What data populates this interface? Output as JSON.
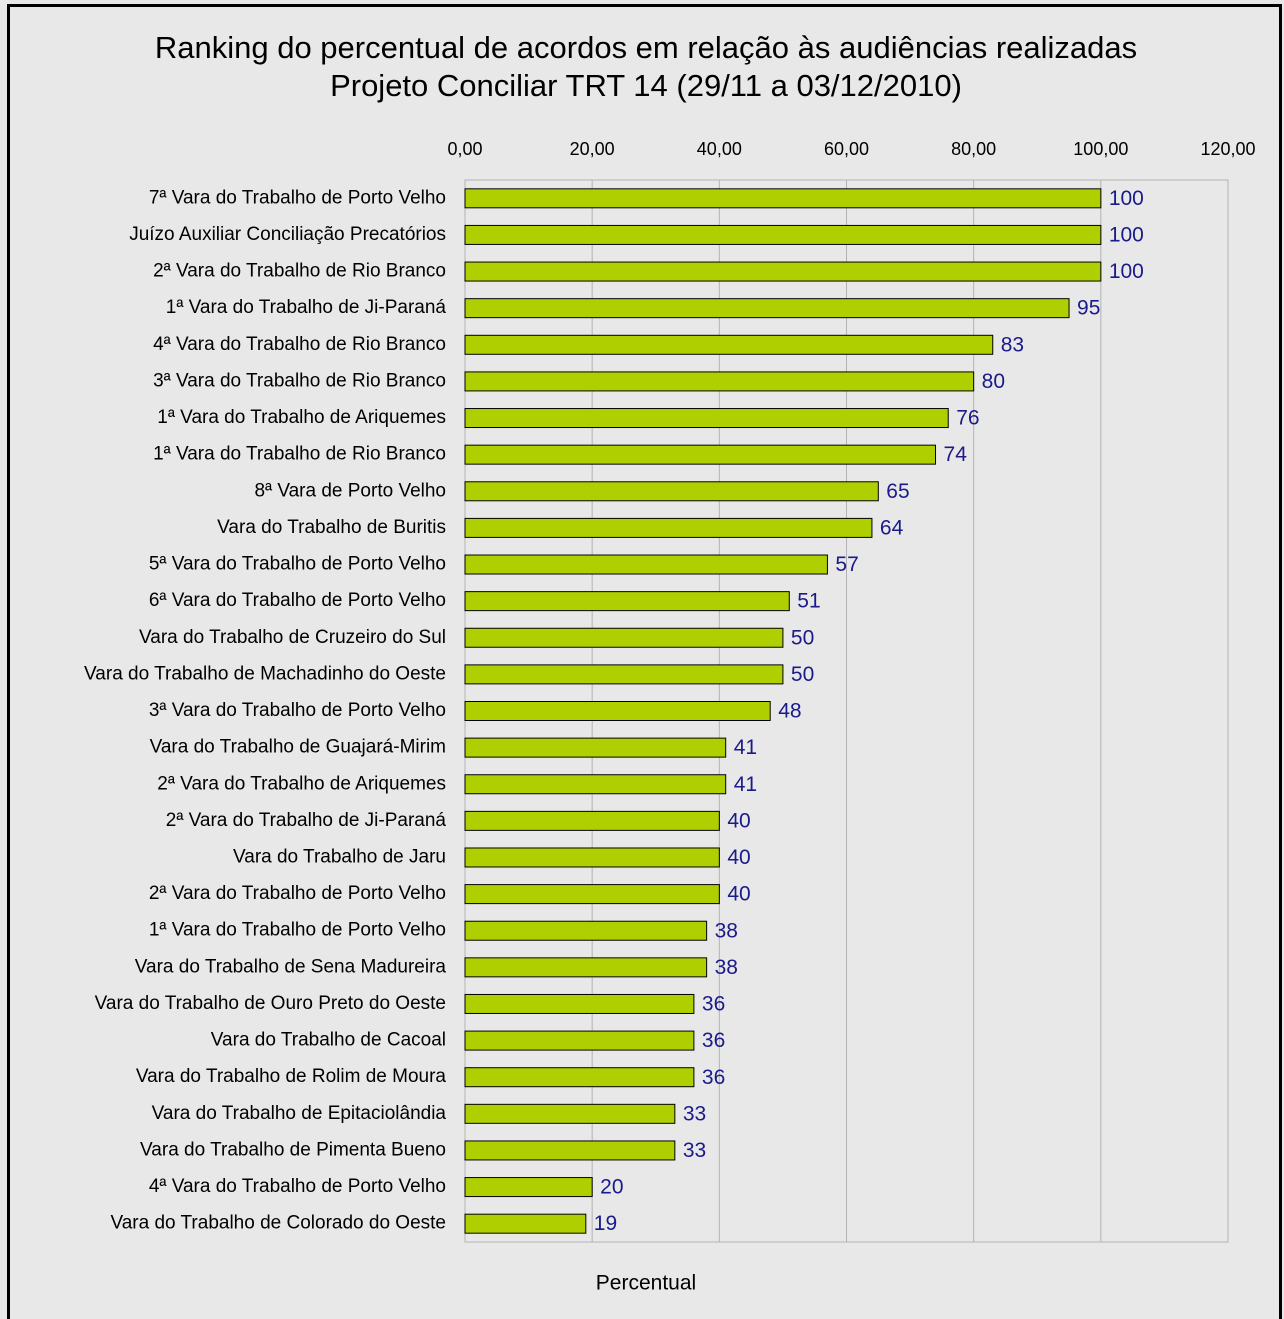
{
  "chart_data": {
    "type": "barh",
    "title": [
      "Ranking do percentual de acordos em relação às audiências realizadas",
      "Projeto Conciliar TRT 14  (29/11 a 03/12/2010)"
    ],
    "xlabel": "Percentual",
    "categories": [
      "7ª Vara do Trabalho de Porto Velho",
      "Juízo Auxiliar Conciliação Precatórios",
      "2ª Vara do Trabalho de Rio Branco",
      "1ª Vara do Trabalho de Ji-Paraná",
      "4ª Vara do Trabalho de Rio Branco",
      "3ª Vara do Trabalho de Rio Branco",
      "1ª Vara do Trabalho de Ariquemes",
      "1ª Vara do Trabalho de Rio Branco",
      "8ª Vara de Porto Velho",
      "Vara do Trabalho de Buritis",
      "5ª Vara do Trabalho de Porto Velho",
      "6ª Vara do Trabalho de Porto Velho",
      "Vara do Trabalho de Cruzeiro do Sul",
      "Vara do Trabalho de Machadinho do Oeste",
      "3ª Vara do Trabalho de Porto Velho",
      "Vara do Trabalho de Guajará-Mirim",
      "2ª Vara do Trabalho de Ariquemes",
      "2ª Vara do Trabalho de Ji-Paraná",
      "Vara do Trabalho de Jaru",
      "2ª Vara do Trabalho de Porto Velho",
      "1ª Vara do Trabalho de Porto Velho",
      "Vara do Trabalho de Sena Madureira",
      "Vara do Trabalho de Ouro Preto do Oeste",
      "Vara do Trabalho de Cacoal",
      "Vara do Trabalho de Rolim de Moura",
      "Vara do Trabalho de Epitaciolândia",
      "Vara do Trabalho de Pimenta Bueno",
      "4ª Vara do Trabalho de Porto Velho",
      "Vara do Trabalho de Colorado do Oeste"
    ],
    "values": [
      100,
      100,
      100,
      95,
      83,
      80,
      76,
      74,
      65,
      64,
      57,
      51,
      50,
      50,
      48,
      41,
      41,
      40,
      40,
      40,
      38,
      38,
      36,
      36,
      36,
      33,
      33,
      20,
      19
    ],
    "color": "#b0cf00",
    "xlim": [
      0,
      120
    ],
    "xticks": [
      {
        "value": 0,
        "label": "0,00"
      },
      {
        "value": 20,
        "label": "20,00"
      },
      {
        "value": 40,
        "label": "40,00"
      },
      {
        "value": 60,
        "label": "60,00"
      },
      {
        "value": 80,
        "label": "80,00"
      },
      {
        "value": 100,
        "label": "100,00"
      },
      {
        "value": 120,
        "label": "120,00"
      }
    ],
    "grid": true
  }
}
